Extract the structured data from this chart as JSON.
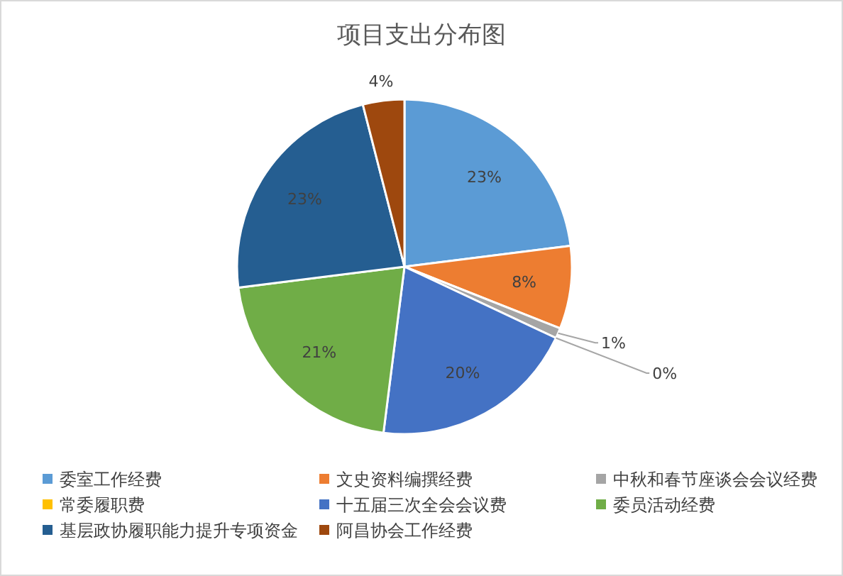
{
  "chart_data": {
    "type": "pie",
    "title": "项目支出分布图",
    "categories": [
      "委室工作经费",
      "文史资料编撰经费",
      "中秋和春节座谈会会议经费",
      "常委履职费",
      "十五届三次全会会议费",
      "委员活动经费",
      "基层政协履职能力提升专项资金",
      "阿昌协会工作经费"
    ],
    "values": [
      23,
      8,
      1,
      0,
      20,
      21,
      23,
      4
    ],
    "colors": [
      "#5b9bd5",
      "#ed7d31",
      "#a5a5a5",
      "#ffc000",
      "#4472c4",
      "#70ad47",
      "#255e91",
      "#9e480e"
    ],
    "value_labels": [
      "23%",
      "8%",
      "1%",
      "0%",
      "20%",
      "21%",
      "23%",
      "4%"
    ],
    "legend": "bottom"
  }
}
